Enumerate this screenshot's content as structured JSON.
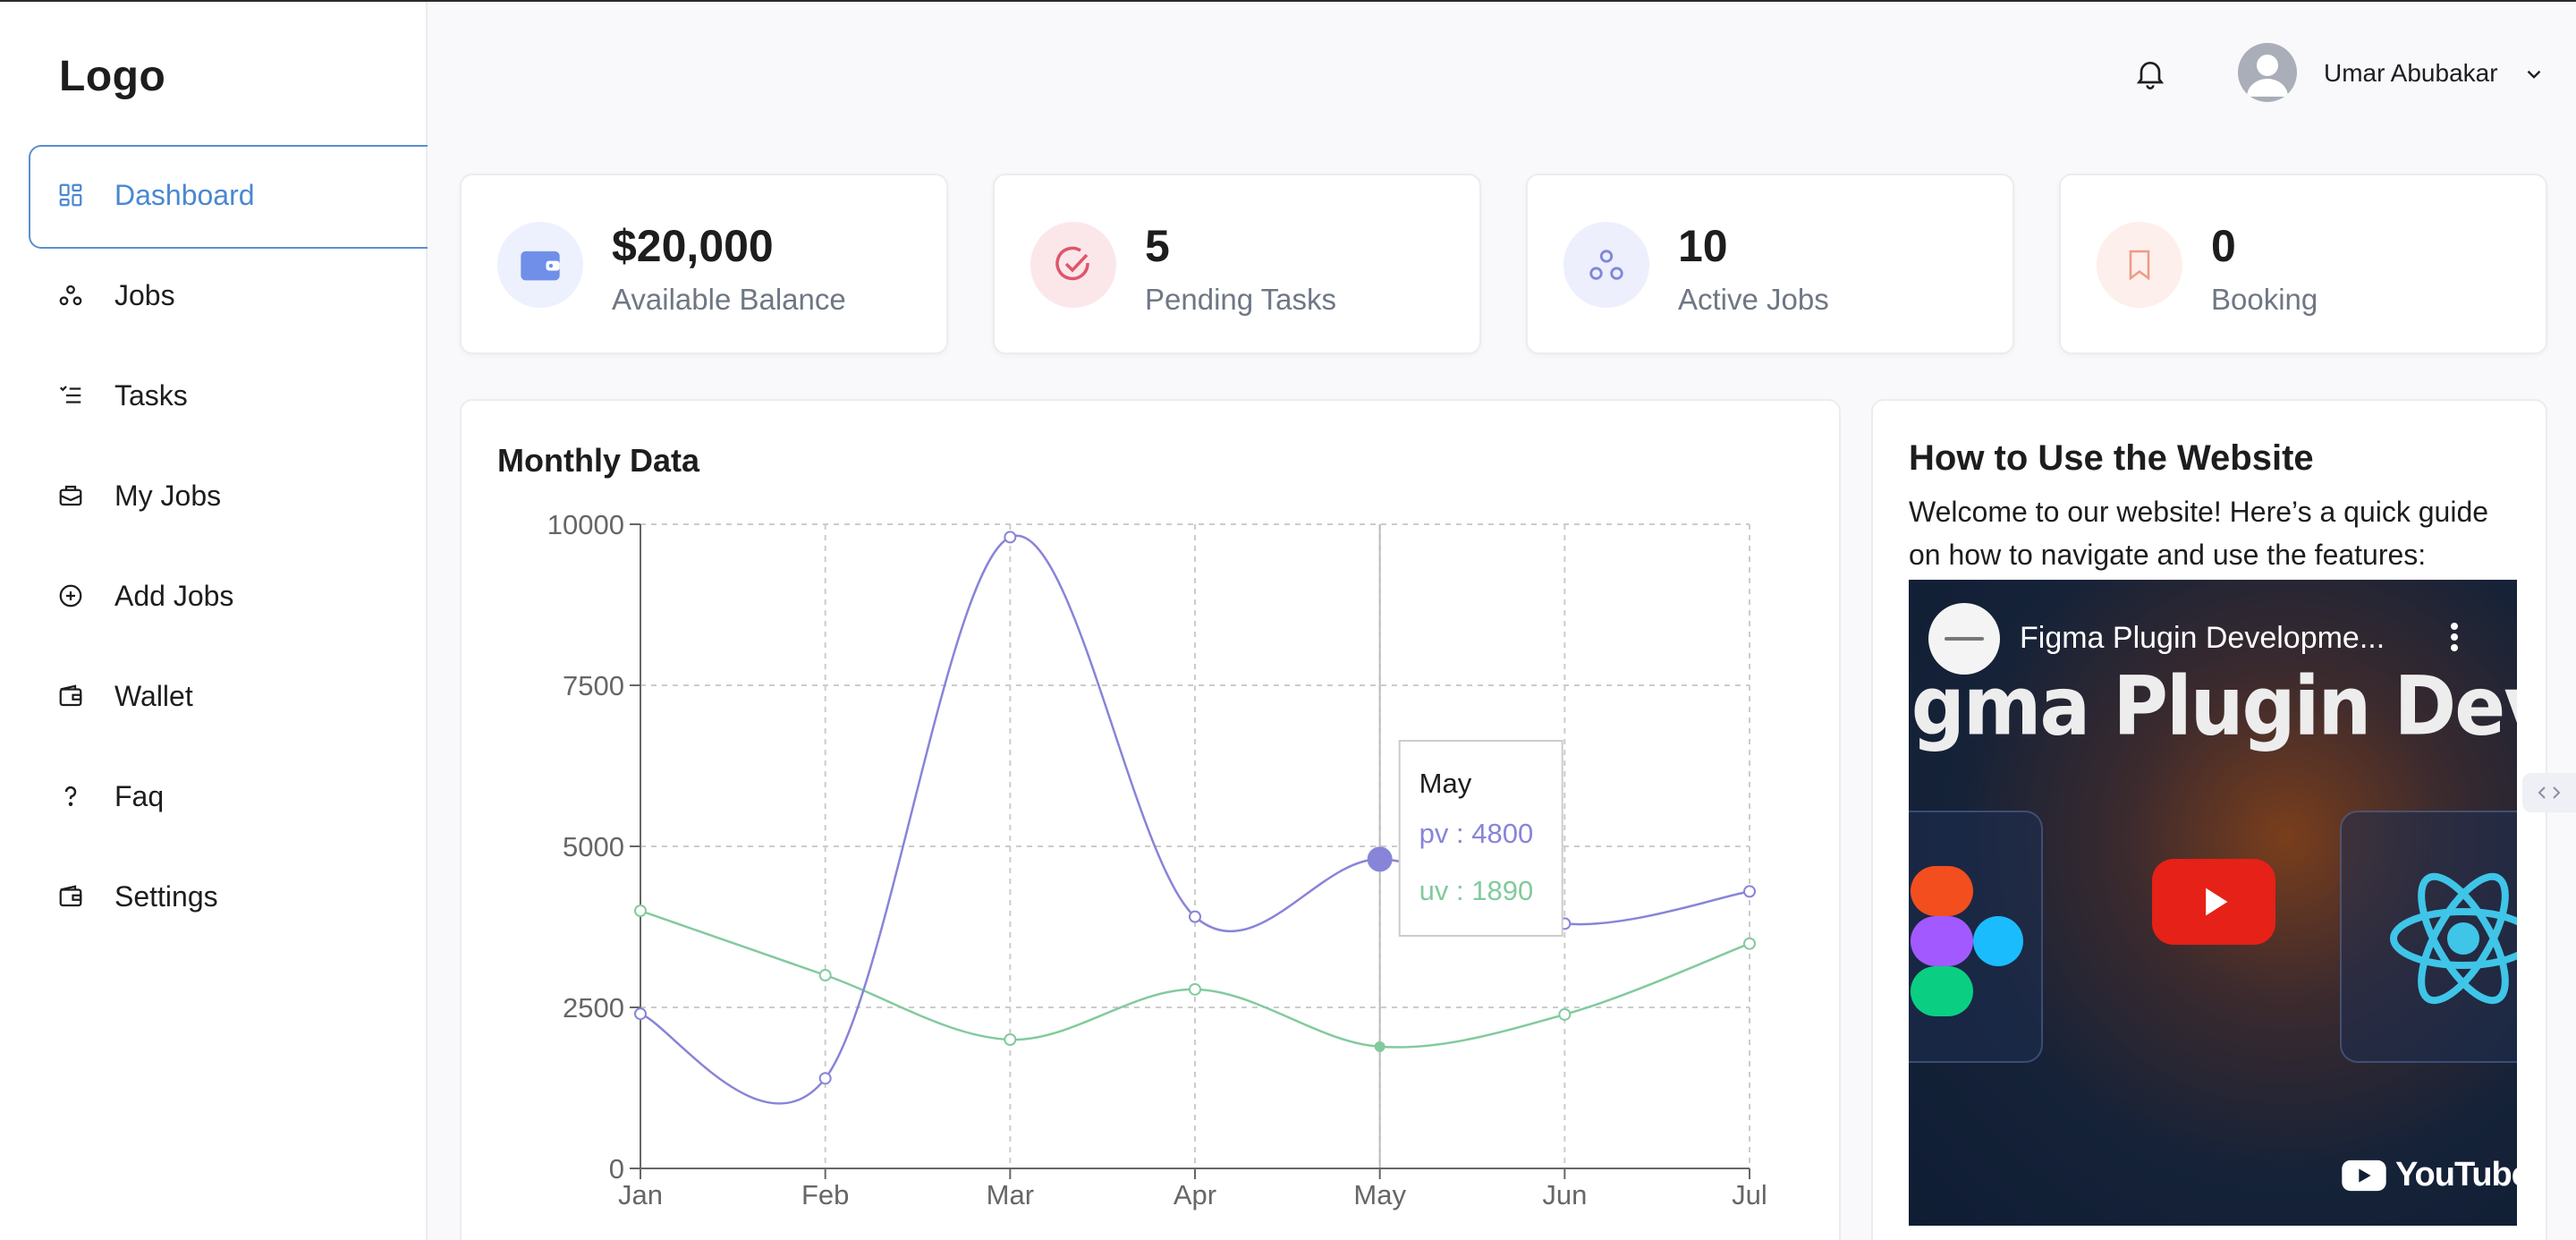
{
  "app": {
    "logo": "Logo"
  },
  "sidebar": {
    "items": [
      {
        "label": "Dashboard",
        "icon": "grid-icon",
        "active": true
      },
      {
        "label": "Jobs",
        "icon": "nodes-icon"
      },
      {
        "label": "Tasks",
        "icon": "list-icon"
      },
      {
        "label": "My Jobs",
        "icon": "briefcase-icon"
      },
      {
        "label": "Add Jobs",
        "icon": "plus-circle-icon"
      },
      {
        "label": "Wallet",
        "icon": "wallet-icon"
      },
      {
        "label": "Faq",
        "icon": "question-icon"
      },
      {
        "label": "Settings",
        "icon": "wallet-icon"
      }
    ]
  },
  "header": {
    "user_name": "Umar Abubakar"
  },
  "stats": [
    {
      "value": "$20,000",
      "label": "Available Balance",
      "icon": "wallet-icon",
      "color": "#6f8fe8",
      "bg": "#edf1fd"
    },
    {
      "value": "5",
      "label": "Pending Tasks",
      "icon": "check-circle-icon",
      "color": "#e0556a",
      "bg": "#fbe7ea"
    },
    {
      "value": "10",
      "label": "Active Jobs",
      "icon": "nodes-icon",
      "color": "#7f87d8",
      "bg": "#eeeffc"
    },
    {
      "value": "0",
      "label": "Booking",
      "icon": "bookmark-icon",
      "color": "#ec9a86",
      "bg": "#fdefeb"
    }
  ],
  "monthly": {
    "title": "Monthly Data",
    "tooltip": {
      "label": "May",
      "pv_text": "pv : 4800",
      "uv_text": "uv : 1890"
    }
  },
  "chart_data": {
    "type": "line",
    "categories": [
      "Jan",
      "Feb",
      "Mar",
      "Apr",
      "May",
      "Jun",
      "Jul"
    ],
    "series": [
      {
        "name": "pv",
        "values": [
          2400,
          1398,
          9800,
          3908,
          4800,
          3800,
          4300
        ],
        "color": "#8884d8"
      },
      {
        "name": "uv",
        "values": [
          4000,
          3000,
          2000,
          2780,
          1890,
          2390,
          3490
        ],
        "color": "#82ca9d"
      }
    ],
    "yticks": [
      0,
      2500,
      5000,
      7500,
      10000
    ],
    "ylim": [
      0,
      10000
    ],
    "grid": true,
    "active_category": "May"
  },
  "guide": {
    "title": "How to Use the Website",
    "text": "Welcome to our website! Here’s a quick guide on how to navigate and use the features:",
    "video_title": "Figma Plugin Developme...",
    "video_banner": "igma Plugin Developme",
    "youtube_label": "YouTube"
  }
}
